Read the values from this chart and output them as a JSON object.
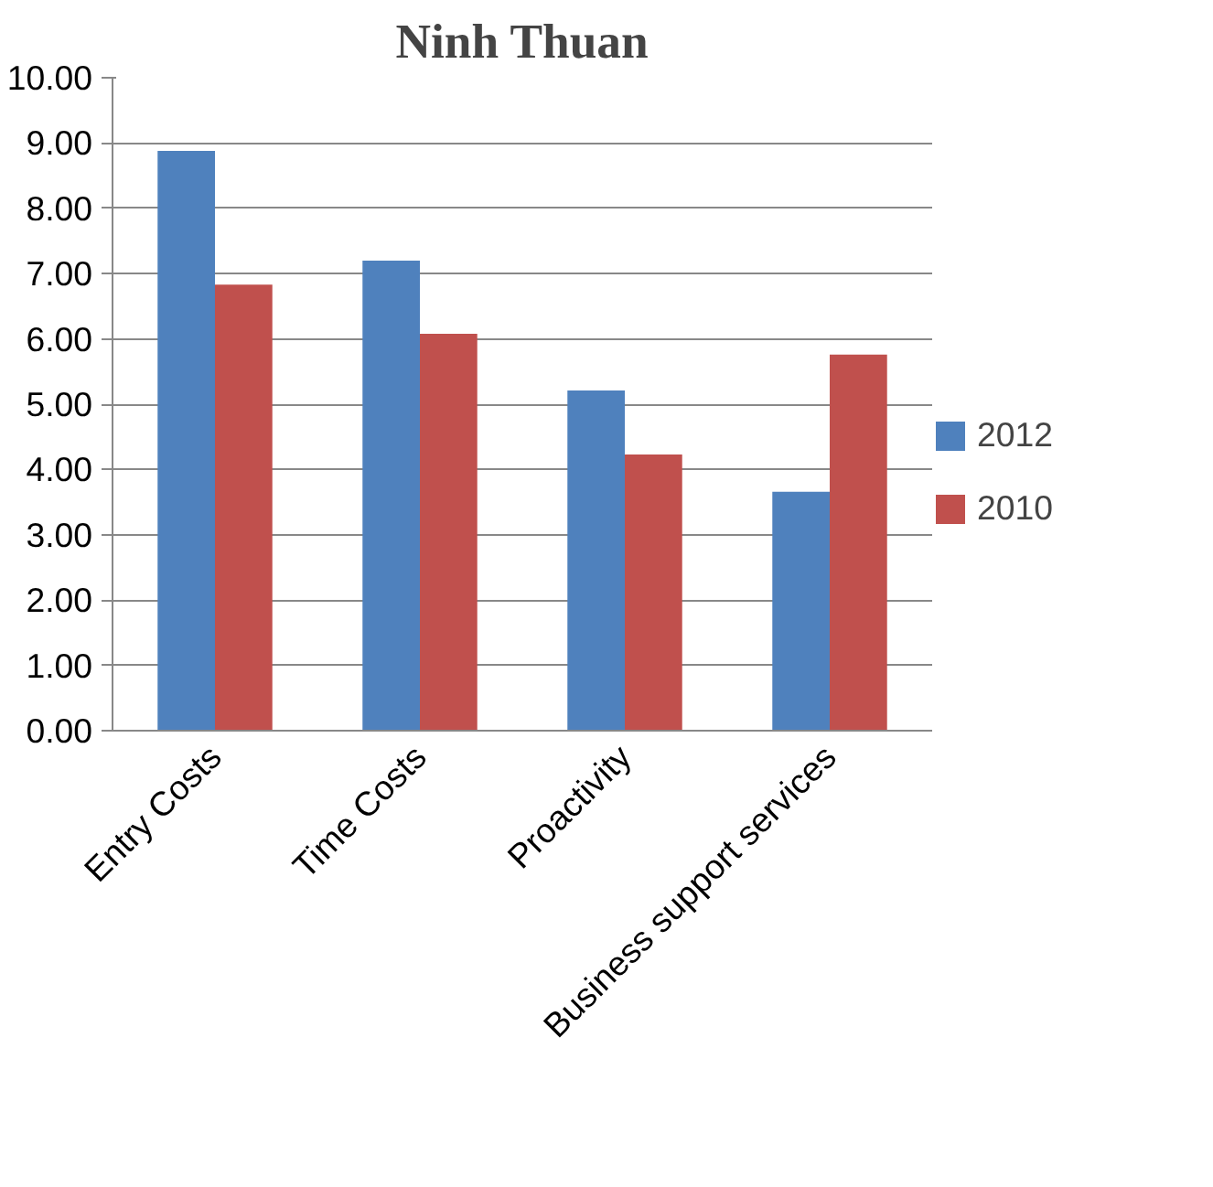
{
  "chart_data": {
    "type": "bar",
    "title": "Ninh Thuan",
    "categories": [
      "Entry Costs",
      "Time Costs",
      "Proactivity",
      "Business support services"
    ],
    "series": [
      {
        "name": "2012",
        "color": "#4f81bd",
        "values": [
          8.88,
          7.2,
          5.21,
          3.66
        ]
      },
      {
        "name": "2010",
        "color": "#c0504d",
        "values": [
          6.83,
          6.08,
          4.23,
          5.76
        ]
      }
    ],
    "ylim": [
      0,
      10
    ],
    "yticks": [
      {
        "value": 0,
        "label": "0.00"
      },
      {
        "value": 1,
        "label": "1.00"
      },
      {
        "value": 2,
        "label": "2.00"
      },
      {
        "value": 3,
        "label": "3.00"
      },
      {
        "value": 4,
        "label": "4.00"
      },
      {
        "value": 5,
        "label": "5.00"
      },
      {
        "value": 6,
        "label": "6.00"
      },
      {
        "value": 7,
        "label": "7.00"
      },
      {
        "value": 8,
        "label": "8.00"
      },
      {
        "value": 9,
        "label": "9.00"
      },
      {
        "value": 10,
        "label": "10.00"
      }
    ],
    "grid": "y",
    "legend": "right"
  }
}
